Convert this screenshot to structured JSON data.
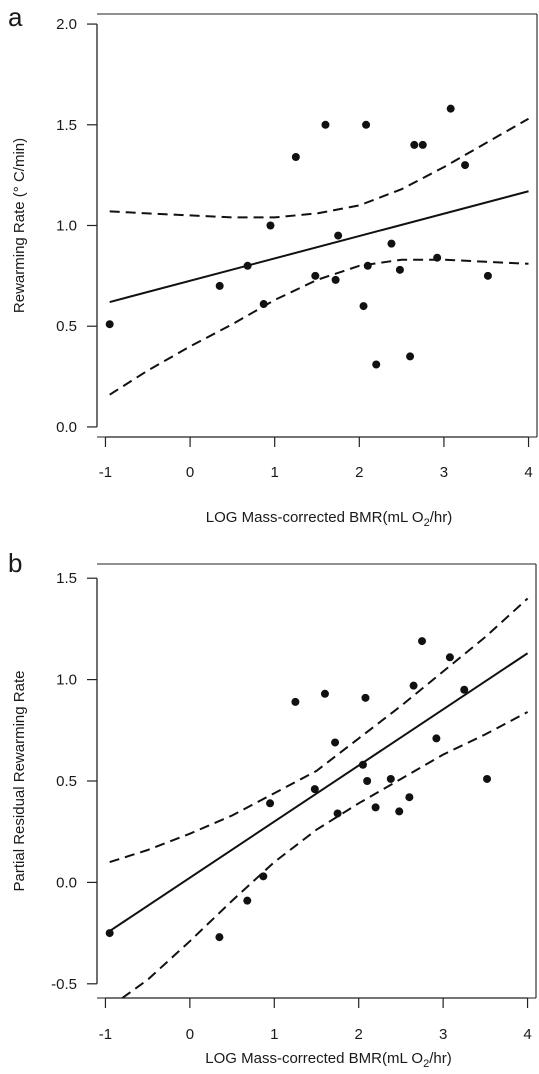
{
  "chart_data": [
    {
      "type": "scatter",
      "panel_label": "a",
      "xlabel_main": "LOG Mass-corrected BMR(mL O",
      "xlabel_sub": "2",
      "xlabel_end": "/hr)",
      "ylabel": "Rewarming Rate (° C/min)",
      "xlim": [
        -1.1,
        4.1
      ],
      "ylim": [
        -0.05,
        2.05
      ],
      "xticks": [
        -1,
        0,
        1,
        2,
        3,
        4
      ],
      "xtick_labels": [
        "-1",
        "0",
        "1",
        "2",
        "3",
        "4"
      ],
      "yticks": [
        0.0,
        0.5,
        1.0,
        1.5,
        2.0
      ],
      "ytick_labels": [
        "0.0",
        "0.5",
        "1.0",
        "1.5",
        "2.0"
      ],
      "grid": false,
      "points": [
        {
          "x": -0.95,
          "y": 0.51
        },
        {
          "x": 0.35,
          "y": 0.7
        },
        {
          "x": 0.68,
          "y": 0.8
        },
        {
          "x": 0.87,
          "y": 0.61
        },
        {
          "x": 0.95,
          "y": 1.0
        },
        {
          "x": 1.25,
          "y": 1.34
        },
        {
          "x": 1.48,
          "y": 0.75
        },
        {
          "x": 1.6,
          "y": 1.5
        },
        {
          "x": 1.72,
          "y": 0.73
        },
        {
          "x": 1.75,
          "y": 0.95
        },
        {
          "x": 2.05,
          "y": 0.6
        },
        {
          "x": 2.08,
          "y": 1.5
        },
        {
          "x": 2.1,
          "y": 0.8
        },
        {
          "x": 2.2,
          "y": 0.31
        },
        {
          "x": 2.38,
          "y": 0.91
        },
        {
          "x": 2.48,
          "y": 0.78
        },
        {
          "x": 2.6,
          "y": 0.35
        },
        {
          "x": 2.65,
          "y": 1.4
        },
        {
          "x": 2.75,
          "y": 1.4
        },
        {
          "x": 2.92,
          "y": 0.84
        },
        {
          "x": 3.08,
          "y": 1.58
        },
        {
          "x": 3.25,
          "y": 1.3
        },
        {
          "x": 3.52,
          "y": 0.75
        }
      ],
      "fit_line": {
        "x": [
          -0.95,
          4.0
        ],
        "y": [
          0.62,
          1.17
        ]
      },
      "ci_upper": {
        "x": [
          -0.95,
          -0.5,
          0.0,
          0.5,
          1.0,
          1.5,
          2.0,
          2.5,
          3.0,
          3.5,
          4.0
        ],
        "y": [
          1.07,
          1.06,
          1.05,
          1.04,
          1.04,
          1.06,
          1.1,
          1.18,
          1.29,
          1.41,
          1.53
        ]
      },
      "ci_lower": {
        "x": [
          -0.95,
          -0.5,
          0.0,
          0.5,
          1.0,
          1.5,
          2.0,
          2.5,
          3.0,
          3.5,
          4.0
        ],
        "y": [
          0.16,
          0.28,
          0.4,
          0.51,
          0.63,
          0.73,
          0.8,
          0.83,
          0.83,
          0.82,
          0.81
        ]
      }
    },
    {
      "type": "scatter",
      "panel_label": "b",
      "xlabel_main": "LOG Mass-corrected BMR(mL O",
      "xlabel_sub": "2",
      "xlabel_end": "/hr)",
      "ylabel": "Partial Residual Rewarming Rate",
      "xlim": [
        -1.1,
        4.1
      ],
      "ylim": [
        -0.57,
        1.57
      ],
      "xticks": [
        -1,
        0,
        1,
        2,
        3,
        4
      ],
      "xtick_labels": [
        "-1",
        "0",
        "1",
        "2",
        "3",
        "4"
      ],
      "yticks": [
        -0.5,
        0.0,
        0.5,
        1.0,
        1.5
      ],
      "ytick_labels": [
        "-0.5",
        "0.0",
        "0.5",
        "1.0",
        "1.5"
      ],
      "grid": false,
      "points": [
        {
          "x": -0.95,
          "y": -0.25
        },
        {
          "x": 0.35,
          "y": -0.27
        },
        {
          "x": 0.68,
          "y": -0.09
        },
        {
          "x": 0.87,
          "y": 0.03
        },
        {
          "x": 0.95,
          "y": 0.39
        },
        {
          "x": 1.25,
          "y": 0.89
        },
        {
          "x": 1.48,
          "y": 0.46
        },
        {
          "x": 1.6,
          "y": 0.93
        },
        {
          "x": 1.72,
          "y": 0.69
        },
        {
          "x": 1.75,
          "y": 0.34
        },
        {
          "x": 2.05,
          "y": 0.58
        },
        {
          "x": 2.08,
          "y": 0.91
        },
        {
          "x": 2.1,
          "y": 0.5
        },
        {
          "x": 2.2,
          "y": 0.37
        },
        {
          "x": 2.38,
          "y": 0.51
        },
        {
          "x": 2.48,
          "y": 0.35
        },
        {
          "x": 2.6,
          "y": 0.42
        },
        {
          "x": 2.65,
          "y": 0.97
        },
        {
          "x": 2.75,
          "y": 1.19
        },
        {
          "x": 2.92,
          "y": 0.71
        },
        {
          "x": 3.08,
          "y": 1.11
        },
        {
          "x": 3.25,
          "y": 0.95
        },
        {
          "x": 3.52,
          "y": 0.51
        }
      ],
      "fit_line": {
        "x": [
          -0.95,
          4.0
        ],
        "y": [
          -0.24,
          1.13
        ]
      },
      "ci_upper": {
        "x": [
          -0.95,
          -0.5,
          0.0,
          0.5,
          1.0,
          1.5,
          2.0,
          2.5,
          3.0,
          3.5,
          4.0
        ],
        "y": [
          0.1,
          0.16,
          0.24,
          0.33,
          0.44,
          0.55,
          0.71,
          0.87,
          1.04,
          1.21,
          1.4
        ]
      },
      "ci_lower": {
        "x": [
          -0.8,
          -0.5,
          0.0,
          0.5,
          1.0,
          1.5,
          2.0,
          2.5,
          3.0,
          3.5,
          4.0
        ],
        "y": [
          -0.57,
          -0.48,
          -0.29,
          -0.09,
          0.1,
          0.26,
          0.39,
          0.51,
          0.63,
          0.73,
          0.84
        ]
      }
    }
  ]
}
